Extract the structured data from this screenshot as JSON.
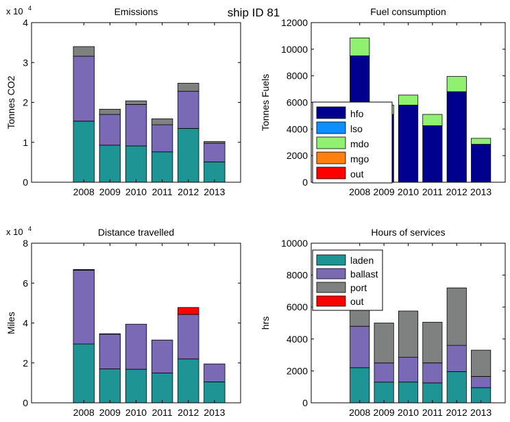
{
  "suptitle": "ship ID 81",
  "chart_data": [
    {
      "type": "bar",
      "stacked": true,
      "title": "Emissions",
      "xlabel": "",
      "ylabel": "Tonnes CO2",
      "exponent_label": "x 10",
      "exponent_power": "4",
      "categories": [
        "2008",
        "2009",
        "2010",
        "2011",
        "2012",
        "2013"
      ],
      "x": [
        2008,
        2009,
        2010,
        2011,
        2012,
        2013
      ],
      "xlim": [
        2006,
        2014
      ],
      "ylim": [
        0,
        40000
      ],
      "yticks": [
        0,
        10000,
        20000,
        30000,
        40000
      ],
      "ytick_labels": [
        "0",
        "1",
        "2",
        "3",
        "4"
      ],
      "legend": "none",
      "grid": false,
      "series": [
        {
          "color": "#1f9494",
          "values": [
            15300,
            9300,
            9100,
            7600,
            13500,
            5100
          ]
        },
        {
          "color": "#7a6ab5",
          "values": [
            16300,
            7700,
            10400,
            6800,
            9300,
            4700
          ]
        },
        {
          "color": "#7f8080",
          "values": [
            2400,
            1300,
            900,
            1500,
            2000,
            400
          ]
        }
      ]
    },
    {
      "type": "bar",
      "stacked": true,
      "title": "Fuel consumption",
      "xlabel": "",
      "ylabel": "Tonnes Fuels",
      "categories": [
        "2008",
        "2009",
        "2010",
        "2011",
        "2012",
        "2013"
      ],
      "x": [
        2008,
        2009,
        2010,
        2011,
        2012,
        2013
      ],
      "xlim": [
        2006,
        2014
      ],
      "ylim": [
        0,
        12000
      ],
      "yticks": [
        0,
        2000,
        4000,
        6000,
        8000,
        10000,
        12000
      ],
      "ytick_labels": [
        "0",
        "2000",
        "4000",
        "6000",
        "8000",
        "10000",
        "12000"
      ],
      "legend": "left",
      "grid": false,
      "series": [
        {
          "name": "hfo",
          "color": "#00008f",
          "values": [
            9500,
            5100,
            5800,
            4250,
            6800,
            2850
          ]
        },
        {
          "name": "lso",
          "color": "#0f8fff",
          "values": [
            0,
            0,
            0,
            0,
            0,
            0
          ]
        },
        {
          "name": "mdo",
          "color": "#90f070",
          "values": [
            1350,
            700,
            750,
            850,
            1150,
            450
          ]
        },
        {
          "name": "mgo",
          "color": "#ff7f0f",
          "values": [
            0,
            0,
            0,
            0,
            0,
            0
          ]
        },
        {
          "name": "out",
          "color": "#ff0000",
          "values": [
            0,
            0,
            0,
            0,
            0,
            0
          ]
        }
      ]
    },
    {
      "type": "bar",
      "stacked": true,
      "title": "Distance travelled",
      "xlabel": "",
      "ylabel": "Miles",
      "exponent_label": "x 10",
      "exponent_power": "4",
      "categories": [
        "2008",
        "2009",
        "2010",
        "2011",
        "2012",
        "2013"
      ],
      "x": [
        2008,
        2009,
        2010,
        2011,
        2012,
        2013
      ],
      "xlim": [
        2006,
        2014
      ],
      "ylim": [
        0,
        80000
      ],
      "yticks": [
        0,
        20000,
        40000,
        60000,
        80000
      ],
      "ytick_labels": [
        "0",
        "2",
        "4",
        "6",
        "8"
      ],
      "legend": "none",
      "grid": false,
      "series": [
        {
          "color": "#1f9494",
          "values": [
            29500,
            17000,
            16800,
            15000,
            22000,
            10500
          ]
        },
        {
          "color": "#7a6ab5",
          "values": [
            37000,
            17400,
            22600,
            16500,
            22300,
            9000
          ]
        },
        {
          "color": "#7f8080",
          "values": [
            300,
            200,
            0,
            0,
            0,
            0
          ]
        },
        {
          "color": "#ff0000",
          "values": [
            0,
            0,
            0,
            0,
            3500,
            0
          ]
        }
      ]
    },
    {
      "type": "bar",
      "stacked": true,
      "title": "Hours of services",
      "xlabel": "",
      "ylabel": "hrs",
      "categories": [
        "2008",
        "2009",
        "2010",
        "2011",
        "2012",
        "2013"
      ],
      "x": [
        2008,
        2009,
        2010,
        2011,
        2012,
        2013
      ],
      "xlim": [
        2006,
        2014
      ],
      "ylim": [
        0,
        10000
      ],
      "yticks": [
        0,
        2000,
        4000,
        6000,
        8000,
        10000
      ],
      "ytick_labels": [
        "0",
        "2000",
        "4000",
        "6000",
        "8000",
        "10000"
      ],
      "legend": "top-left",
      "grid": false,
      "series": [
        {
          "name": "laden",
          "color": "#1f9494",
          "values": [
            2200,
            1300,
            1300,
            1250,
            1950,
            950
          ]
        },
        {
          "name": "ballast",
          "color": "#7a6ab5",
          "values": [
            2600,
            1200,
            1550,
            1250,
            1650,
            700
          ]
        },
        {
          "name": "port",
          "color": "#7f8080",
          "values": [
            1200,
            2500,
            2900,
            2550,
            3600,
            1650
          ]
        },
        {
          "name": "out",
          "color": "#ff0000",
          "values": [
            0,
            0,
            0,
            0,
            0,
            0
          ]
        }
      ]
    }
  ]
}
